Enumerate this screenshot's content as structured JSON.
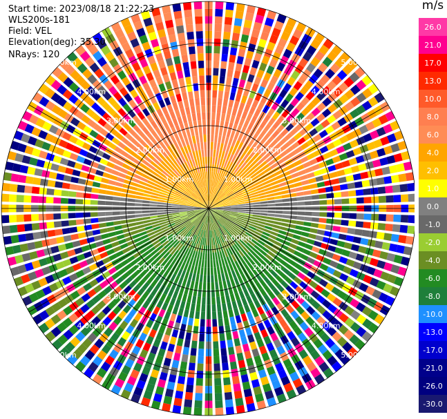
{
  "header": {
    "start_time": "Start time: 2023/08/18 21:22:23",
    "instrument": "WLS200s-181",
    "field": "Field: VEL",
    "elevation": "Elevation(deg): 35.30",
    "nrays": "NRays: 120"
  },
  "colorbar": {
    "unit": "m/s",
    "ticks": [
      "26.0",
      "21.0",
      "17.0",
      "13.0",
      "10.0",
      "8.0",
      "6.0",
      "4.0",
      "2.0",
      "1.0",
      "0.0",
      "-1.0",
      "-2.0",
      "-4.0",
      "-6.0",
      "-8.0",
      "-10.0",
      "-13.0",
      "-17.0",
      "-21.0",
      "-26.0",
      "-30.0"
    ],
    "colors": [
      "#ff39a6",
      "#ff008f",
      "#ff0000",
      "#ff2a00",
      "#ff5a2a",
      "#ff7f50",
      "#ff8c55",
      "#ffa500",
      "#ffbf00",
      "#ffff00",
      "#808080",
      "#696969",
      "#9acd32",
      "#6b8e23",
      "#228b22",
      "#1e7f3a",
      "#1e90ff",
      "#0000ff",
      "#0000cd",
      "#00008b",
      "#000080",
      "#191970"
    ]
  },
  "range_labels": [
    "1.00km",
    "2.00km",
    "3.00km",
    "4.00km",
    "5.00km"
  ],
  "chart_data": {
    "type": "heatmap",
    "projection": "PPI (polar plan position indicator)",
    "field": "VEL",
    "units": "m/s",
    "nrays": 120,
    "elevation_deg": 35.3,
    "range_km": [
      0,
      5.0
    ],
    "range_rings_km": [
      1.0,
      2.0,
      3.0,
      4.0,
      5.0
    ],
    "color_scale_ms": [
      -30.0,
      26.0
    ],
    "pattern": {
      "north_sector_ms": [
        6.0,
        10.0
      ],
      "south_sector_ms": [
        -8.0,
        -4.0
      ],
      "near_zero_band": "east-west line",
      "outer_ranges": "noisy, mixed velocities"
    },
    "grid": true
  }
}
